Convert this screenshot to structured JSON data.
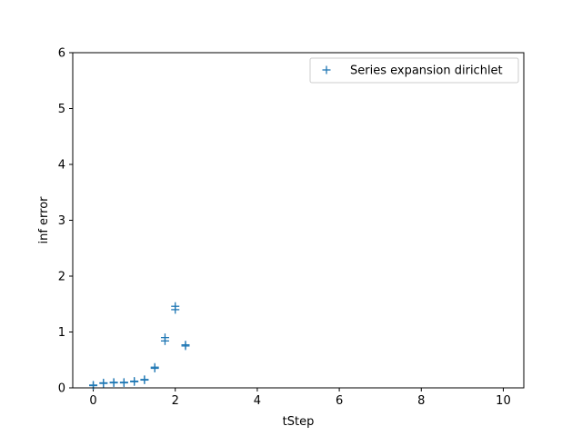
{
  "chart_data": {
    "type": "scatter",
    "title": "",
    "xlabel": "tStep",
    "ylabel": "inf error",
    "xlim": [
      -0.5,
      10.5
    ],
    "ylim": [
      0,
      6
    ],
    "xticks": [
      0,
      2,
      4,
      6,
      8,
      10
    ],
    "yticks": [
      0,
      1,
      2,
      3,
      4,
      5,
      6
    ],
    "grid": false,
    "legend_position": "top-right",
    "marker": "plus",
    "colors": {
      "series": "#1f77b4",
      "axes": "#000000",
      "background": "#ffffff"
    },
    "series": [
      {
        "name": "Series expansion dirichlet",
        "points": [
          {
            "x": 0.0,
            "y": 0.04
          },
          {
            "x": 0.0,
            "y": 0.05
          },
          {
            "x": 0.25,
            "y": 0.08
          },
          {
            "x": 0.25,
            "y": 0.09
          },
          {
            "x": 0.5,
            "y": 0.09
          },
          {
            "x": 0.5,
            "y": 0.1
          },
          {
            "x": 0.75,
            "y": 0.09
          },
          {
            "x": 0.75,
            "y": 0.1
          },
          {
            "x": 1.0,
            "y": 0.11
          },
          {
            "x": 1.0,
            "y": 0.12
          },
          {
            "x": 1.25,
            "y": 0.14
          },
          {
            "x": 1.25,
            "y": 0.15
          },
          {
            "x": 1.5,
            "y": 0.35
          },
          {
            "x": 1.5,
            "y": 0.37
          },
          {
            "x": 1.75,
            "y": 0.84
          },
          {
            "x": 1.75,
            "y": 0.9
          },
          {
            "x": 2.0,
            "y": 1.4
          },
          {
            "x": 2.0,
            "y": 1.46
          },
          {
            "x": 2.25,
            "y": 0.75
          },
          {
            "x": 2.25,
            "y": 0.77
          }
        ]
      }
    ]
  }
}
